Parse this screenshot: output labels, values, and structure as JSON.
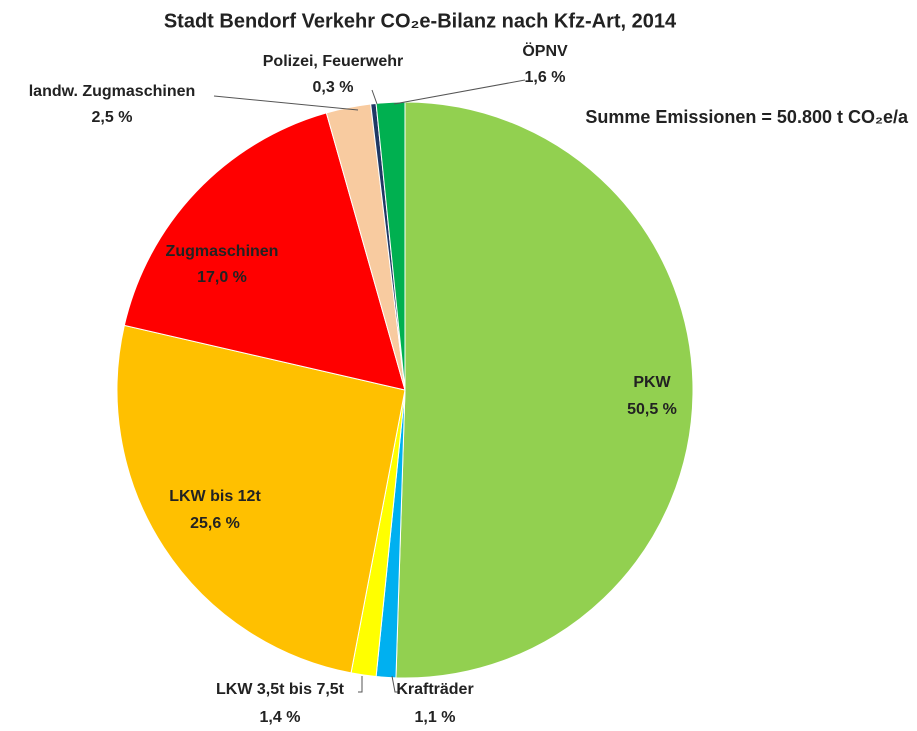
{
  "chart_data": {
    "type": "pie",
    "title": "Stadt Bendorf  Verkehr CO₂e-Bilanz nach Kfz-Art, 2014",
    "annotation": "Summe Emissionen = 50.800 t CO₂e/a",
    "categories": [
      "PKW",
      "Krafträder",
      "LKW 3,5t bis 7,5t",
      "LKW bis 12t",
      "Zugmaschinen",
      "landw. Zugmaschinen",
      "Polizei, Feuerwehr",
      "ÖPNV"
    ],
    "values": [
      50.5,
      1.1,
      1.4,
      25.6,
      17.0,
      2.5,
      0.3,
      1.6
    ],
    "value_labels": [
      "50,5 %",
      "1,1 %",
      "1,4 %",
      "25,6 %",
      "17,0 %",
      "2,5 %",
      "0,3 %",
      "1,6 %"
    ],
    "colors": [
      "#92d050",
      "#00b0f0",
      "#ffff00",
      "#ffc000",
      "#ff0000",
      "#f8cba0",
      "#1f3864",
      "#00b050"
    ]
  }
}
